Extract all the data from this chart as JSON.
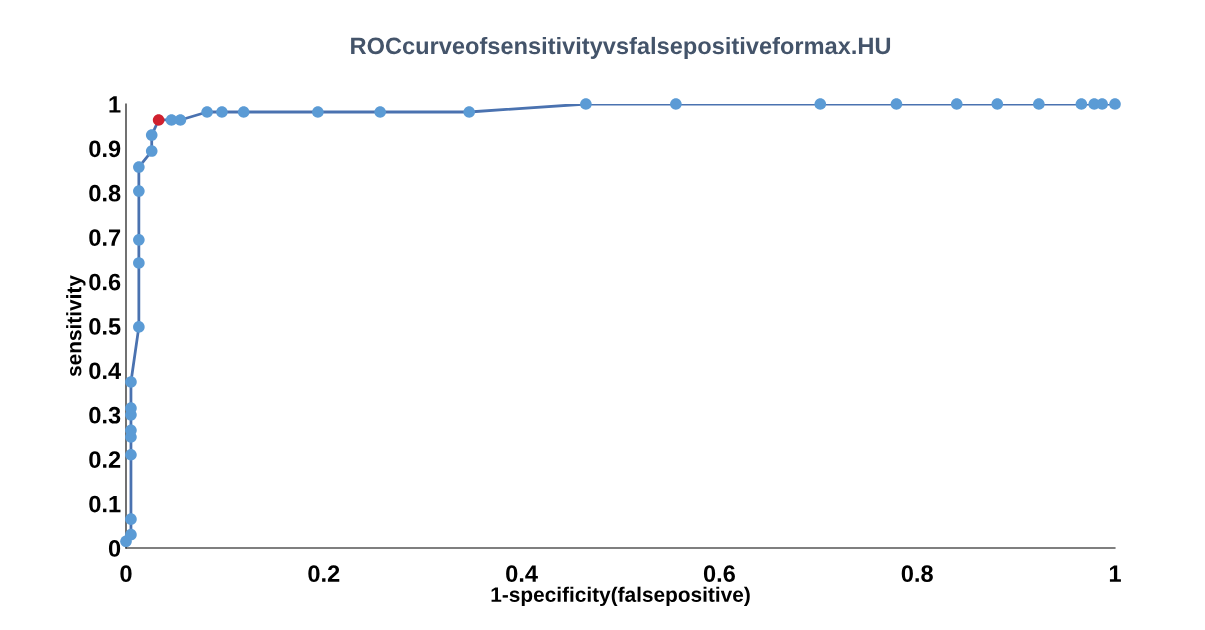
{
  "chart_data": {
    "type": "line",
    "title": "ROCcurveofsensitivityvsfalsepositiveformax.HU",
    "xlabel": "1-specificity(falsepositive)",
    "ylabel": "sensitivity",
    "series": [
      {
        "color": "#4a72b0",
        "x": [
          0,
          0.005,
          0.005,
          0.005,
          0.005,
          0.005,
          0.005,
          0.005,
          0.005,
          0.013,
          0.013,
          0.013,
          0.013,
          0.013,
          0.026,
          0.026,
          0.033,
          0.046,
          0.055,
          0.082,
          0.097,
          0.119,
          0.194,
          0.257,
          0.347,
          0.465,
          0.556,
          0.702,
          0.779,
          0.84,
          0.881,
          0.923,
          0.966,
          0.979,
          0.987,
          1
        ],
        "values": [
          0.015,
          0.03,
          0.065,
          0.21,
          0.25,
          0.265,
          0.3,
          0.315,
          0.374,
          0.498,
          0.642,
          0.694,
          0.804,
          0.858,
          0.894,
          0.93,
          0.964,
          0.964,
          0.964,
          0.982,
          0.982,
          0.982,
          0.982,
          0.982,
          0.982,
          1,
          1,
          1,
          1,
          1,
          1,
          1,
          1,
          1,
          1,
          1
        ],
        "colors": [
          "#5b9bd5",
          "#5b9bd5",
          "#5b9bd5",
          "#5b9bd5",
          "#5b9bd5",
          "#5b9bd5",
          "#5b9bd5",
          "#5b9bd5",
          "#5b9bd5",
          "#5b9bd5",
          "#5b9bd5",
          "#5b9bd5",
          "#5b9bd5",
          "#5b9bd5",
          "#5b9bd5",
          "#5b9bd5",
          "#d0202e",
          "#5b9bd5",
          "#5b9bd5",
          "#5b9bd5",
          "#5b9bd5",
          "#5b9bd5",
          "#5b9bd5",
          "#5b9bd5",
          "#5b9bd5",
          "#5b9bd5",
          "#5b9bd5",
          "#5b9bd5",
          "#5b9bd5",
          "#5b9bd5",
          "#5b9bd5",
          "#5b9bd5",
          "#5b9bd5",
          "#5b9bd5",
          "#5b9bd5",
          "#5b9bd5"
        ]
      }
    ],
    "xlim": [
      0,
      1
    ],
    "xticks": [
      0,
      0.2,
      0.4,
      0.6,
      0.8,
      1
    ],
    "ylim": [
      0,
      1
    ],
    "yticks": [
      0,
      0.1,
      0.2,
      0.3,
      0.4,
      0.5,
      0.6,
      0.7,
      0.8,
      0.9,
      1
    ],
    "marker": "circle",
    "line_style": "solid",
    "grid": false,
    "legend": false
  }
}
